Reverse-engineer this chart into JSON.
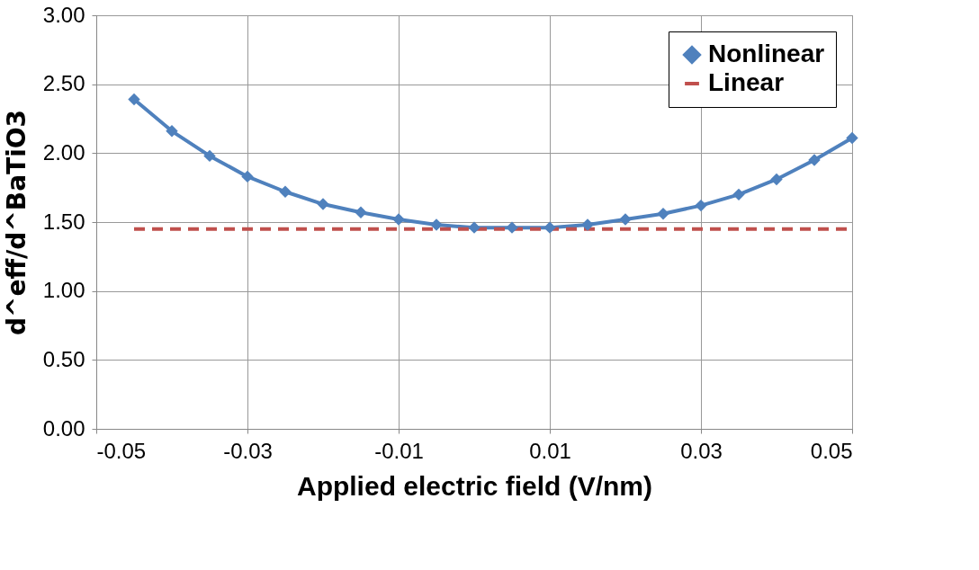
{
  "chart_data": {
    "type": "line",
    "xlabel": "Applied electric field  (V/nm)",
    "ylabel": "d^eff/d^BaTiO3",
    "xlim": [
      -0.05,
      0.05
    ],
    "xticks": [
      {
        "value": -0.05,
        "label": "-0.05"
      },
      {
        "value": -0.03,
        "label": "-0.03"
      },
      {
        "value": -0.01,
        "label": "-0.01"
      },
      {
        "value": 0.01,
        "label": "0.01"
      },
      {
        "value": 0.03,
        "label": "0.03"
      },
      {
        "value": 0.05,
        "label": "0.05"
      }
    ],
    "ylim": [
      0,
      3
    ],
    "yticks": [
      {
        "value": 0,
        "label": "0.00"
      },
      {
        "value": 0.5,
        "label": "0.50"
      },
      {
        "value": 1,
        "label": "1.00"
      },
      {
        "value": 1.5,
        "label": "1.50"
      },
      {
        "value": 2,
        "label": "2.00"
      },
      {
        "value": 2.5,
        "label": "2.50"
      },
      {
        "value": 3,
        "label": "3.00"
      }
    ],
    "grid": true,
    "legend": "top right",
    "series": [
      {
        "name": "Nonlinear",
        "color": "#4f81bd",
        "marker": "diamond",
        "line_style": "solid",
        "x": [
          -0.045,
          -0.04,
          -0.035,
          -0.03,
          -0.025,
          -0.02,
          -0.015,
          -0.01,
          -0.005,
          0,
          0.005,
          0.01,
          0.015,
          0.02,
          0.025,
          0.03,
          0.035,
          0.04,
          0.045,
          0.05
        ],
        "values": [
          2.39,
          2.16,
          1.98,
          1.83,
          1.72,
          1.63,
          1.57,
          1.52,
          1.48,
          1.46,
          1.46,
          1.46,
          1.48,
          1.52,
          1.56,
          1.62,
          1.7,
          1.81,
          1.95,
          2.11
        ]
      },
      {
        "name": "Linear",
        "color": "#c0504d",
        "marker": "none",
        "line_style": "dashed",
        "x": [
          -0.045,
          0.05
        ],
        "values": [
          1.45,
          1.45
        ]
      }
    ]
  }
}
